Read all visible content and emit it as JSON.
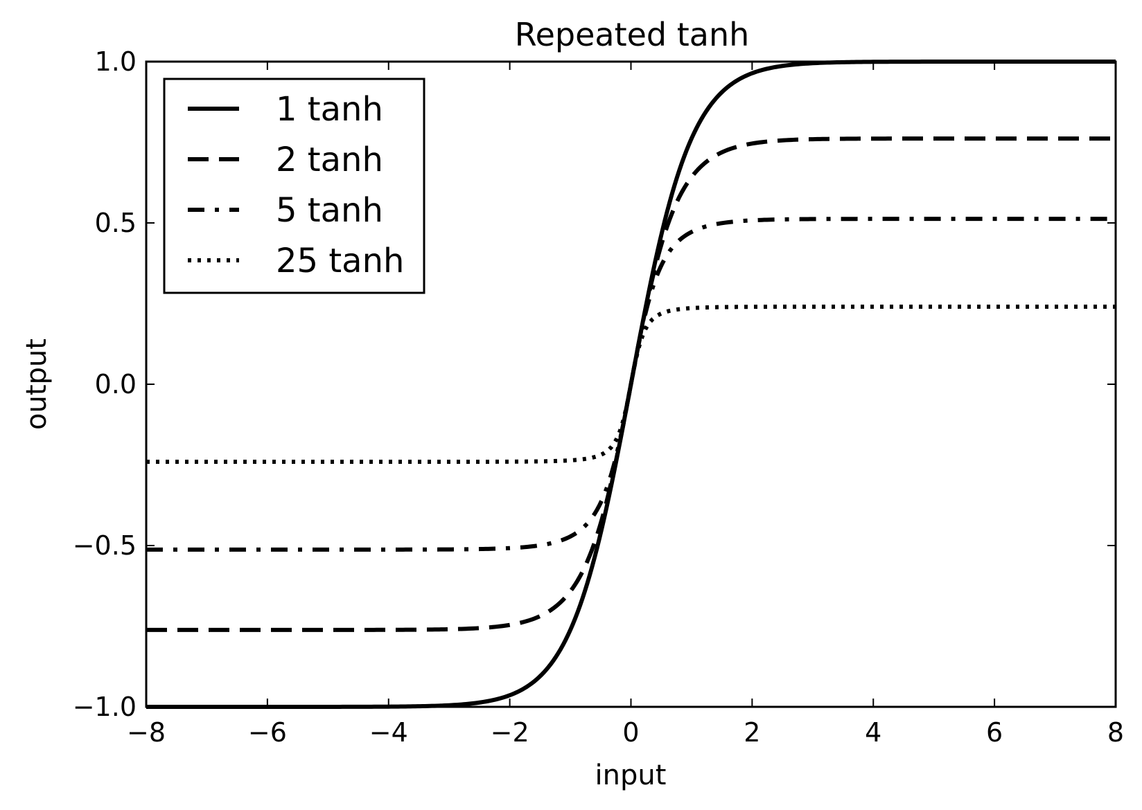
{
  "chart_data": {
    "type": "line",
    "title": "Repeated tanh",
    "xlabel": "input",
    "ylabel": "output",
    "xlim": [
      -8,
      8
    ],
    "ylim": [
      -1.0,
      1.0
    ],
    "xticks": [
      -8,
      -6,
      -4,
      -2,
      0,
      2,
      4,
      6,
      8
    ],
    "xtick_labels": [
      "−8",
      "−6",
      "−4",
      "−2",
      "0",
      "2",
      "4",
      "6",
      "8"
    ],
    "yticks": [
      -1.0,
      -0.5,
      0.0,
      0.5,
      1.0
    ],
    "ytick_labels": [
      "−1.0",
      "−0.5",
      "0.0",
      "0.5",
      "1.0"
    ],
    "grid": false,
    "legend": {
      "location": "upper-left"
    },
    "line_color": "#000000",
    "series": [
      {
        "name": "1 tanh",
        "iterations": 1,
        "style": "solid"
      },
      {
        "name": "2 tanh",
        "iterations": 2,
        "style": "dashed"
      },
      {
        "name": "5 tanh",
        "iterations": 5,
        "style": "dashdot"
      },
      {
        "name": "25 tanh",
        "iterations": 25,
        "style": "dotted"
      }
    ]
  }
}
